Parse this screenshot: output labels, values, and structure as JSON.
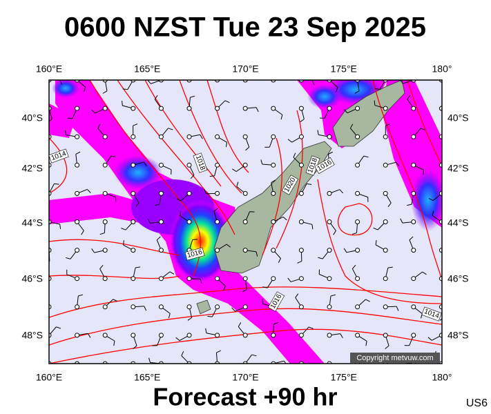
{
  "header": {
    "title": "0600 NZST Tue 23 Sep 2025"
  },
  "map": {
    "lon_labels": [
      "160°E",
      "165°E",
      "170°E",
      "175°E",
      "180°"
    ],
    "lat_labels": [
      "40°S",
      "42°S",
      "44°S",
      "46°S",
      "48°S"
    ],
    "isobar_labels": [
      "1014",
      "1018",
      "1016",
      "1020",
      "1018",
      "1016",
      "1016",
      "1014"
    ]
  },
  "footer": {
    "forecast": "Forecast +90 hr",
    "copyright": "Copyright metvuw.com",
    "code": "US6"
  }
}
